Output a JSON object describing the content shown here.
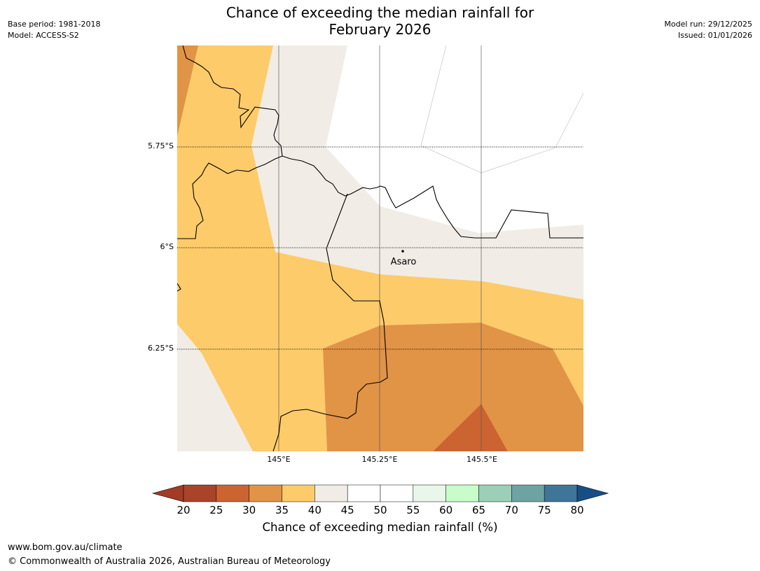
{
  "title_line1": "Chance of exceeding the median rainfall for",
  "title_line2": "February 2026",
  "meta_left": {
    "base_period": "Base period: 1981-2018",
    "model": "Model: ACCESS-S2"
  },
  "meta_right": {
    "model_run": "Model run: 29/12/2025",
    "issued": "Issued: 01/01/2026"
  },
  "map": {
    "lat_labels": [
      "5.75°S",
      "6°S",
      "6.25°S"
    ],
    "lon_labels": [
      "145°E",
      "145.25°E",
      "145.5°E"
    ],
    "place": {
      "name": "Asaro"
    }
  },
  "colorbar": {
    "ticks": [
      "20",
      "25",
      "30",
      "35",
      "40",
      "45",
      "50",
      "55",
      "60",
      "65",
      "70",
      "75",
      "80"
    ],
    "colors": [
      "#a9432a",
      "#cb6431",
      "#e19346",
      "#fdcb69",
      "#f1ece6",
      "#ffffff",
      "#ffffff",
      "#e9f7ea",
      "#c8fcca",
      "#9ccfb7",
      "#6ea3a3",
      "#3f7598"
    ],
    "low_extend_color": "#a33b26",
    "high_extend_color": "#174e86",
    "label": "Chance of exceeding median rainfall (%)"
  },
  "footer": {
    "url": "www.bom.gov.au/climate",
    "copyright": "© Commonwealth of Australia 2026, Australian Bureau of Meteorology"
  }
}
